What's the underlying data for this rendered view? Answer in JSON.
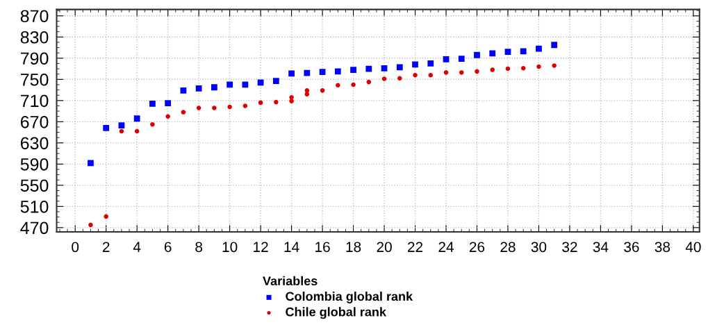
{
  "chart_data": {
    "type": "scatter",
    "legend_title": "Variables",
    "legend": "bottom",
    "grid": true,
    "xlim": [
      -1.2,
      40.4
    ],
    "xticks": [
      0,
      2,
      4,
      6,
      8,
      10,
      12,
      14,
      16,
      18,
      20,
      22,
      24,
      26,
      28,
      30,
      32,
      34,
      36,
      38,
      40
    ],
    "ylim": [
      462,
      882
    ],
    "yticks": [
      470,
      510,
      550,
      590,
      630,
      670,
      710,
      750,
      790,
      830,
      870
    ],
    "series": [
      {
        "name": "Colombia global rank",
        "color": "#0000ff",
        "marker": "square",
        "x": [
          1,
          2,
          3,
          4,
          5,
          6,
          7,
          8,
          9,
          10,
          11,
          12,
          13,
          14,
          15,
          16,
          17,
          18,
          19,
          20,
          21,
          22,
          23,
          24,
          25,
          26,
          27,
          28,
          29,
          30,
          31
        ],
        "values": [
          592,
          658,
          663,
          676,
          704,
          705,
          729,
          733,
          735,
          740,
          740,
          744,
          747,
          761,
          762,
          764,
          765,
          768,
          770,
          771,
          773,
          778,
          780,
          788,
          789,
          796,
          799,
          802,
          803,
          808,
          815
        ]
      },
      {
        "name": "Chile global rank",
        "color": "#e00000",
        "marker": "circle",
        "x": [
          1,
          2,
          3,
          4,
          5,
          6,
          7,
          8,
          9,
          10,
          11,
          12,
          13,
          14,
          14,
          15,
          15,
          16,
          17,
          18,
          19,
          20,
          21,
          22,
          23,
          24,
          25,
          26,
          27,
          28,
          29,
          30,
          31
        ],
        "values": [
          475,
          491,
          652,
          652,
          665,
          680,
          688,
          696,
          696,
          698,
          700,
          706,
          707,
          716,
          709,
          729,
          722,
          729,
          739,
          740,
          745,
          751,
          752,
          758,
          758,
          763,
          763,
          765,
          768,
          770,
          771,
          774,
          776
        ]
      }
    ]
  }
}
